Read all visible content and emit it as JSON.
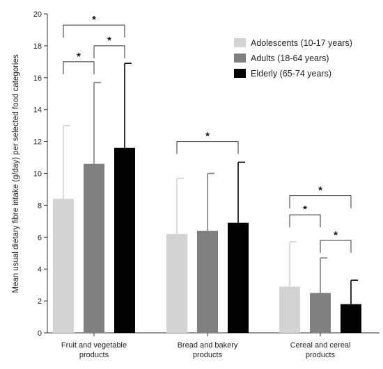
{
  "chart_data": {
    "type": "bar",
    "ylabel": "Mean usual dietary fibre intake (g/day) per selected food categories",
    "ylim": [
      0,
      20
    ],
    "yticks": [
      0,
      2,
      4,
      6,
      8,
      10,
      12,
      14,
      16,
      18,
      20
    ],
    "categories": [
      [
        "Fruit and vegetable",
        "products"
      ],
      [
        "Bread and bakery",
        "products"
      ],
      [
        "Cereal and cereal",
        "products"
      ]
    ],
    "series": [
      {
        "name": "Adolescents (10-17 years)",
        "color": "#d3d3d3",
        "values": [
          8.4,
          6.2,
          2.9
        ],
        "error_upper": [
          13.0,
          9.7,
          5.7
        ]
      },
      {
        "name": "Adults (18-64 years)",
        "color": "#808080",
        "values": [
          10.6,
          6.4,
          2.5
        ],
        "error_upper": [
          15.7,
          10.0,
          4.7
        ]
      },
      {
        "name": "Elderly (65-74 years)",
        "color": "#000000",
        "values": [
          11.6,
          6.9,
          1.8
        ],
        "error_upper": [
          16.9,
          10.7,
          3.3
        ]
      }
    ],
    "significance": [
      {
        "category": 0,
        "from": 0,
        "to": 1,
        "y": 17.0,
        "label": "*"
      },
      {
        "category": 0,
        "from": 1,
        "to": 2,
        "y": 18.0,
        "label": "*"
      },
      {
        "category": 0,
        "from": 0,
        "to": 2,
        "y": 19.3,
        "label": "*"
      },
      {
        "category": 1,
        "from": 0,
        "to": 2,
        "y": 12.0,
        "label": "*"
      },
      {
        "category": 2,
        "from": 0,
        "to": 1,
        "y": 7.4,
        "label": "*"
      },
      {
        "category": 2,
        "from": 1,
        "to": 2,
        "y": 5.8,
        "label": "*"
      },
      {
        "category": 2,
        "from": 0,
        "to": 2,
        "y": 8.6,
        "label": "*"
      }
    ],
    "legend_position": "top-right",
    "grid": false
  }
}
